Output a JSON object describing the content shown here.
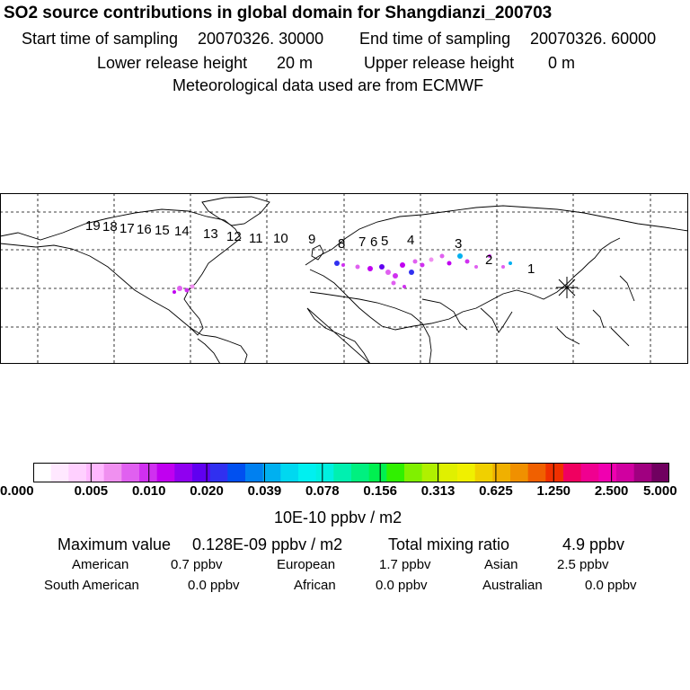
{
  "header": {
    "title": "SO2 source contributions in global domain for Shangdianzi_200703",
    "start_label": "Start time of sampling",
    "start_value": "20070326. 30000",
    "end_label": "End time of sampling",
    "end_value": "20070326. 60000",
    "lower_label": "Lower release height",
    "lower_value": "20 m",
    "upper_label": "Upper release height",
    "upper_value": "0 m",
    "met": "Meteorological data used are from ECMWF"
  },
  "map": {
    "trajectory_labels": [
      "19",
      "18",
      "17",
      "16",
      "15",
      "14",
      "13",
      "12",
      "11",
      "10",
      "9",
      "8",
      "7",
      "6",
      "5",
      "4",
      "3",
      "2",
      "1"
    ],
    "receptor_marker": "receptor-star"
  },
  "colorbar": {
    "colors": [
      "#ffffff",
      "#ffe8ff",
      "#ffd0ff",
      "#ffb8ff",
      "#f090f0",
      "#e060f0",
      "#d030f0",
      "#c000f0",
      "#9000f0",
      "#6000f0",
      "#3030f0",
      "#0050f0",
      "#0080f0",
      "#00b0f0",
      "#00d8f0",
      "#00f0f0",
      "#00f0e0",
      "#00f0b0",
      "#00f080",
      "#00f050",
      "#30f000",
      "#80f000",
      "#b0f000",
      "#e0f000",
      "#f0f000",
      "#f0d000",
      "#f0b000",
      "#f09000",
      "#f06000",
      "#f03000",
      "#f00060",
      "#f00090",
      "#f000b0",
      "#d000a0",
      "#a00080",
      "#700060"
    ],
    "tick_labels": [
      "0.000",
      "0.005",
      "0.010",
      "0.020",
      "0.039",
      "0.078",
      "0.156",
      "0.313",
      "0.625",
      "1.250",
      "2.500",
      "5.000"
    ],
    "unit": "10E-10 ppbv / m2"
  },
  "stats": {
    "max_label": "Maximum value",
    "max_value": "0.128E-09 ppbv / m2",
    "total_label": "Total mixing ratio",
    "total_value": "4.9 ppbv",
    "regions": [
      {
        "name": "American",
        "value": "0.7 ppbv"
      },
      {
        "name": "European",
        "value": "1.7 ppbv"
      },
      {
        "name": "Asian",
        "value": "2.5 ppbv"
      },
      {
        "name": "South American",
        "value": "0.0 ppbv"
      },
      {
        "name": "African",
        "value": "0.0 ppbv"
      },
      {
        "name": "Australian",
        "value": "0.0 ppbv"
      }
    ]
  }
}
